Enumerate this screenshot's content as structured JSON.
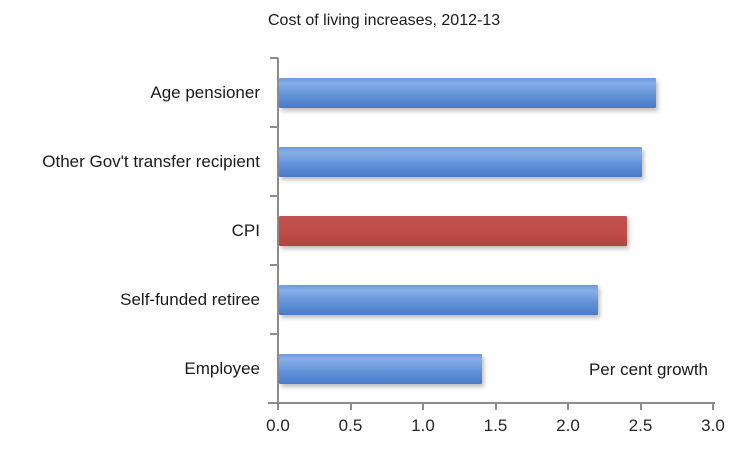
{
  "title": "Cost of living increases, 2012-13",
  "annotation": "Per cent growth",
  "colors": {
    "bar_blue": "#5C8DD8",
    "bar_red": "#BE4B48",
    "axis": "#8C8C8C",
    "text": "#1A1A1A"
  },
  "chart_data": {
    "type": "bar",
    "orientation": "horizontal",
    "title": "Cost of living increases, 2012-13",
    "categories": [
      "Age pensioner",
      "Other Gov't transfer recipient",
      "CPI",
      "Self-funded retiree",
      "Employee"
    ],
    "values": [
      2.6,
      2.5,
      2.4,
      2.2,
      1.4
    ],
    "bar_colors": [
      "blue",
      "blue",
      "red",
      "blue",
      "blue"
    ],
    "highlight_category": "CPI",
    "xlabel": "Per cent growth",
    "ylabel": "",
    "x_ticks": [
      0.0,
      0.5,
      1.0,
      1.5,
      2.0,
      2.5,
      3.0
    ],
    "xlim": [
      0,
      3.0
    ],
    "grid": false,
    "legend": false
  }
}
